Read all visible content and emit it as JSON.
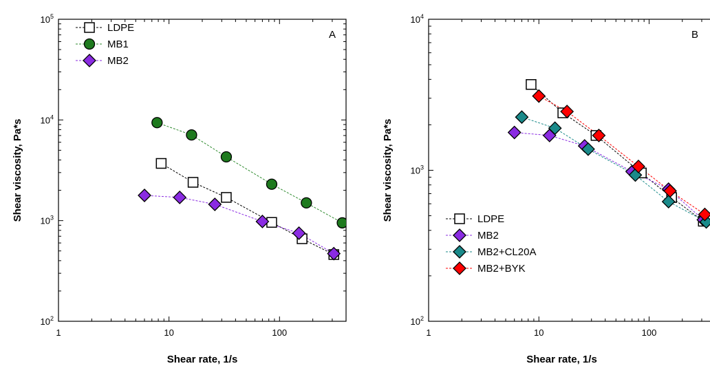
{
  "chart_data": [
    {
      "type": "scatter",
      "panel_label": "A",
      "xlabel": "Shear rate, 1/s",
      "ylabel": "Shear viscosity, Pa*s",
      "xscale": "log",
      "yscale": "log",
      "xlim": [
        1,
        400
      ],
      "ylim": [
        100,
        100000
      ],
      "x_ticks": [
        {
          "value": 1,
          "label": "1"
        },
        {
          "value": 10,
          "label": "10"
        },
        {
          "value": 100,
          "label": "100"
        }
      ],
      "y_ticks": [
        {
          "value": 100,
          "base": "10",
          "exp": "2"
        },
        {
          "value": 1000,
          "base": "10",
          "exp": "3"
        },
        {
          "value": 10000,
          "base": "10",
          "exp": "4"
        },
        {
          "value": 100000,
          "base": "10",
          "exp": "5"
        }
      ],
      "legend_position": "top-left",
      "series": [
        {
          "name": "LDPE",
          "marker": "square",
          "fill": "#ffffff",
          "line_color": "#000000",
          "x": [
            8.5,
            16.5,
            33,
            85,
            160,
            310
          ],
          "y": [
            3700,
            2400,
            1700,
            960,
            660,
            460
          ]
        },
        {
          "name": "MB1",
          "marker": "circle",
          "fill": "#1e7a1e",
          "line_color": "#2e8b2e",
          "x": [
            7.8,
            16,
            33,
            85,
            175,
            370
          ],
          "y": [
            9400,
            7100,
            4300,
            2300,
            1500,
            950
          ]
        },
        {
          "name": "MB2",
          "marker": "diamond",
          "fill": "#8a2be2",
          "line_color": "#8a2be2",
          "x": [
            6,
            12.5,
            26,
            70,
            150,
            310
          ],
          "y": [
            1780,
            1700,
            1450,
            980,
            750,
            470
          ]
        }
      ]
    },
    {
      "type": "scatter",
      "panel_label": "B",
      "xlabel": "Shear rate, 1/s",
      "ylabel": "Shear viscosity, Pa*s",
      "xscale": "log",
      "yscale": "log",
      "xlim": [
        1,
        400
      ],
      "ylim": [
        100,
        10000
      ],
      "x_ticks": [
        {
          "value": 1,
          "label": "1"
        },
        {
          "value": 10,
          "label": "10"
        },
        {
          "value": 100,
          "label": "100"
        }
      ],
      "y_ticks": [
        {
          "value": 100,
          "base": "10",
          "exp": "2"
        },
        {
          "value": 1000,
          "base": "10",
          "exp": "3"
        },
        {
          "value": 10000,
          "base": "10",
          "exp": "4"
        }
      ],
      "legend_position": "bottom-left",
      "series": [
        {
          "name": "LDPE",
          "marker": "square",
          "fill": "#ffffff",
          "line_color": "#000000",
          "x": [
            8.5,
            16.5,
            33,
            85,
            160,
            310
          ],
          "y": [
            3700,
            2400,
            1700,
            960,
            660,
            460
          ]
        },
        {
          "name": "MB2",
          "marker": "diamond",
          "fill": "#8a2be2",
          "line_color": "#8a2be2",
          "x": [
            6,
            12.5,
            26,
            70,
            150,
            310
          ],
          "y": [
            1780,
            1700,
            1450,
            980,
            750,
            470
          ]
        },
        {
          "name": "MB2+CL20A",
          "marker": "diamond",
          "fill": "#1a8a8a",
          "line_color": "#1a8a8a",
          "x": [
            7,
            14,
            28,
            75,
            150,
            330
          ],
          "y": [
            2250,
            1900,
            1380,
            930,
            620,
            455
          ]
        },
        {
          "name": "MB2+BYK",
          "marker": "diamond",
          "fill": "#ff0000",
          "line_color": "#ff0000",
          "x": [
            10,
            18,
            35,
            80,
            155,
            320
          ],
          "y": [
            3100,
            2450,
            1700,
            1060,
            730,
            510
          ]
        }
      ]
    }
  ]
}
